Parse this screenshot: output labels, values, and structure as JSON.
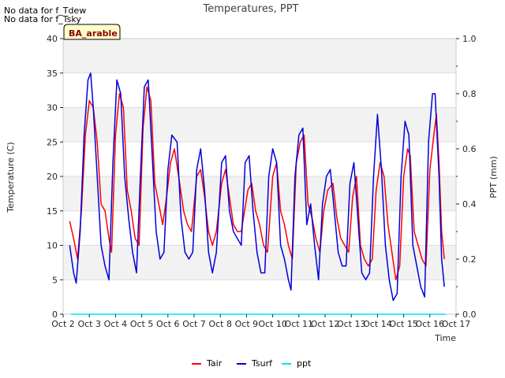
{
  "notes": [
    "No data for f_Tdew",
    "No data for f_Tsky"
  ],
  "chart_data": {
    "type": "line",
    "title": "Temperatures, PPT",
    "xlabel": "Time",
    "ylabel_left": "Temperature (C)",
    "ylabel_right": "PPT (mm)",
    "badge": "BA_arable",
    "x_range": [
      2,
      17
    ],
    "x_ticks": [
      {
        "v": 2,
        "label": "Oct 2"
      },
      {
        "v": 3,
        "label": "Oct 3"
      },
      {
        "v": 4,
        "label": "Oct 4"
      },
      {
        "v": 5,
        "label": "Oct 5"
      },
      {
        "v": 6,
        "label": "Oct 6"
      },
      {
        "v": 7,
        "label": "Oct 7"
      },
      {
        "v": 8,
        "label": "Oct 8"
      },
      {
        "v": 9,
        "label": "Oct 9"
      },
      {
        "v": 10,
        "label": "Oct 10"
      },
      {
        "v": 11,
        "label": "Oct 11"
      },
      {
        "v": 12,
        "label": "Oct 12"
      },
      {
        "v": 13,
        "label": "Oct 13"
      },
      {
        "v": 14,
        "label": "Oct 14"
      },
      {
        "v": 15,
        "label": "Oct 15"
      },
      {
        "v": 16,
        "label": "Oct 16"
      },
      {
        "v": 17,
        "label": "Oct 17"
      }
    ],
    "ylim_left": [
      0,
      40
    ],
    "y_ticks_left": [
      0,
      5,
      10,
      15,
      20,
      25,
      30,
      35,
      40
    ],
    "ylim_right": [
      0,
      1.0
    ],
    "y_ticks_right": [
      0.0,
      0.2,
      0.4,
      0.6,
      0.8,
      1.0
    ],
    "y_tick_labels_right": [
      "0.0",
      "0.2",
      "0.4",
      "0.6",
      "0.8",
      "1.0"
    ],
    "grid": true,
    "legend_placement": "bottom-center",
    "series": [
      {
        "name": "Tair",
        "color": "#ff0000",
        "axis": "left",
        "points": [
          [
            2.25,
            13.5
          ],
          [
            2.4,
            11
          ],
          [
            2.55,
            8
          ],
          [
            2.7,
            15
          ],
          [
            2.85,
            26
          ],
          [
            3.0,
            31
          ],
          [
            3.15,
            30
          ],
          [
            3.3,
            25
          ],
          [
            3.45,
            16
          ],
          [
            3.6,
            15
          ],
          [
            3.75,
            11
          ],
          [
            3.85,
            9
          ],
          [
            4.0,
            26
          ],
          [
            4.15,
            32
          ],
          [
            4.3,
            30
          ],
          [
            4.45,
            18
          ],
          [
            4.6,
            15
          ],
          [
            4.75,
            11
          ],
          [
            4.9,
            10
          ],
          [
            5.05,
            27
          ],
          [
            5.2,
            33
          ],
          [
            5.35,
            31
          ],
          [
            5.5,
            19
          ],
          [
            5.65,
            16
          ],
          [
            5.8,
            13
          ],
          [
            5.95,
            17
          ],
          [
            6.1,
            22
          ],
          [
            6.25,
            24
          ],
          [
            6.45,
            19
          ],
          [
            6.6,
            15
          ],
          [
            6.75,
            13
          ],
          [
            6.9,
            12
          ],
          [
            7.1,
            20
          ],
          [
            7.25,
            21
          ],
          [
            7.4,
            17
          ],
          [
            7.55,
            12
          ],
          [
            7.7,
            10
          ],
          [
            7.85,
            12
          ],
          [
            8.05,
            19
          ],
          [
            8.2,
            21
          ],
          [
            8.35,
            17
          ],
          [
            8.5,
            13
          ],
          [
            8.65,
            12
          ],
          [
            8.8,
            12
          ],
          [
            9.05,
            18
          ],
          [
            9.2,
            19
          ],
          [
            9.35,
            15
          ],
          [
            9.5,
            13
          ],
          [
            9.65,
            10
          ],
          [
            9.8,
            9
          ],
          [
            10.0,
            20
          ],
          [
            10.15,
            22
          ],
          [
            10.3,
            15
          ],
          [
            10.45,
            13
          ],
          [
            10.6,
            10
          ],
          [
            10.75,
            8
          ],
          [
            10.9,
            22
          ],
          [
            11.05,
            25
          ],
          [
            11.2,
            26
          ],
          [
            11.35,
            16
          ],
          [
            11.5,
            14
          ],
          [
            11.65,
            11
          ],
          [
            11.8,
            9
          ],
          [
            11.95,
            15
          ],
          [
            12.1,
            18
          ],
          [
            12.3,
            19
          ],
          [
            12.45,
            14
          ],
          [
            12.6,
            11
          ],
          [
            12.75,
            10
          ],
          [
            12.9,
            9
          ],
          [
            13.05,
            17
          ],
          [
            13.2,
            20
          ],
          [
            13.35,
            10
          ],
          [
            13.5,
            8
          ],
          [
            13.65,
            7
          ],
          [
            13.8,
            8
          ],
          [
            13.95,
            18
          ],
          [
            14.1,
            22
          ],
          [
            14.25,
            20
          ],
          [
            14.4,
            13
          ],
          [
            14.55,
            9
          ],
          [
            14.7,
            5
          ],
          [
            14.85,
            7
          ],
          [
            15.0,
            20
          ],
          [
            15.15,
            24
          ],
          [
            15.25,
            23
          ],
          [
            15.4,
            12
          ],
          [
            15.55,
            10
          ],
          [
            15.7,
            8
          ],
          [
            15.85,
            7
          ],
          [
            16.0,
            21
          ],
          [
            16.15,
            26
          ],
          [
            16.25,
            29
          ],
          [
            16.35,
            22
          ],
          [
            16.45,
            12
          ],
          [
            16.55,
            8
          ]
        ]
      },
      {
        "name": "Tsurf",
        "color": "#0000dd",
        "axis": "left",
        "points": [
          [
            2.25,
            10
          ],
          [
            2.4,
            6
          ],
          [
            2.5,
            4.5
          ],
          [
            2.65,
            12
          ],
          [
            2.8,
            26
          ],
          [
            2.95,
            34
          ],
          [
            3.05,
            35
          ],
          [
            3.15,
            30
          ],
          [
            3.3,
            20
          ],
          [
            3.45,
            10
          ],
          [
            3.6,
            7
          ],
          [
            3.75,
            5
          ],
          [
            3.9,
            22
          ],
          [
            4.05,
            34
          ],
          [
            4.2,
            32
          ],
          [
            4.35,
            20
          ],
          [
            4.5,
            14
          ],
          [
            4.65,
            9
          ],
          [
            4.8,
            6
          ],
          [
            4.95,
            20
          ],
          [
            5.1,
            33
          ],
          [
            5.25,
            34
          ],
          [
            5.4,
            23
          ],
          [
            5.55,
            12
          ],
          [
            5.7,
            8
          ],
          [
            5.85,
            9
          ],
          [
            6.0,
            21
          ],
          [
            6.15,
            26
          ],
          [
            6.35,
            25
          ],
          [
            6.5,
            14
          ],
          [
            6.65,
            9
          ],
          [
            6.8,
            8
          ],
          [
            6.95,
            9
          ],
          [
            7.1,
            21
          ],
          [
            7.25,
            24
          ],
          [
            7.4,
            18
          ],
          [
            7.55,
            9
          ],
          [
            7.7,
            6
          ],
          [
            7.85,
            9
          ],
          [
            8.05,
            22
          ],
          [
            8.2,
            23
          ],
          [
            8.35,
            15
          ],
          [
            8.5,
            12
          ],
          [
            8.65,
            11
          ],
          [
            8.8,
            10
          ],
          [
            8.95,
            22
          ],
          [
            9.1,
            23
          ],
          [
            9.25,
            15
          ],
          [
            9.4,
            9
          ],
          [
            9.55,
            6
          ],
          [
            9.7,
            6
          ],
          [
            9.85,
            20
          ],
          [
            10.0,
            24
          ],
          [
            10.15,
            22
          ],
          [
            10.3,
            10
          ],
          [
            10.45,
            8
          ],
          [
            10.6,
            5
          ],
          [
            10.7,
            3.5
          ],
          [
            10.85,
            20
          ],
          [
            11.0,
            26
          ],
          [
            11.15,
            27
          ],
          [
            11.3,
            13
          ],
          [
            11.45,
            16
          ],
          [
            11.6,
            10
          ],
          [
            11.75,
            5
          ],
          [
            11.9,
            16
          ],
          [
            12.05,
            20
          ],
          [
            12.2,
            21
          ],
          [
            12.35,
            15
          ],
          [
            12.5,
            9
          ],
          [
            12.65,
            7
          ],
          [
            12.8,
            7
          ],
          [
            12.95,
            19
          ],
          [
            13.1,
            22
          ],
          [
            13.25,
            14
          ],
          [
            13.4,
            6
          ],
          [
            13.55,
            5
          ],
          [
            13.7,
            6
          ],
          [
            13.85,
            20
          ],
          [
            14.0,
            29
          ],
          [
            14.15,
            21
          ],
          [
            14.3,
            10
          ],
          [
            14.45,
            5
          ],
          [
            14.6,
            2
          ],
          [
            14.75,
            3
          ],
          [
            14.9,
            20
          ],
          [
            15.05,
            28
          ],
          [
            15.2,
            26
          ],
          [
            15.35,
            10
          ],
          [
            15.5,
            7
          ],
          [
            15.65,
            4
          ],
          [
            15.8,
            2.5
          ],
          [
            15.95,
            25
          ],
          [
            16.1,
            32
          ],
          [
            16.2,
            32
          ],
          [
            16.35,
            20
          ],
          [
            16.45,
            8
          ],
          [
            16.55,
            4
          ]
        ]
      },
      {
        "name": "ppt",
        "color": "#00e5ee",
        "axis": "right",
        "points": [
          [
            2.3,
            0
          ],
          [
            16.6,
            0
          ]
        ]
      }
    ]
  }
}
